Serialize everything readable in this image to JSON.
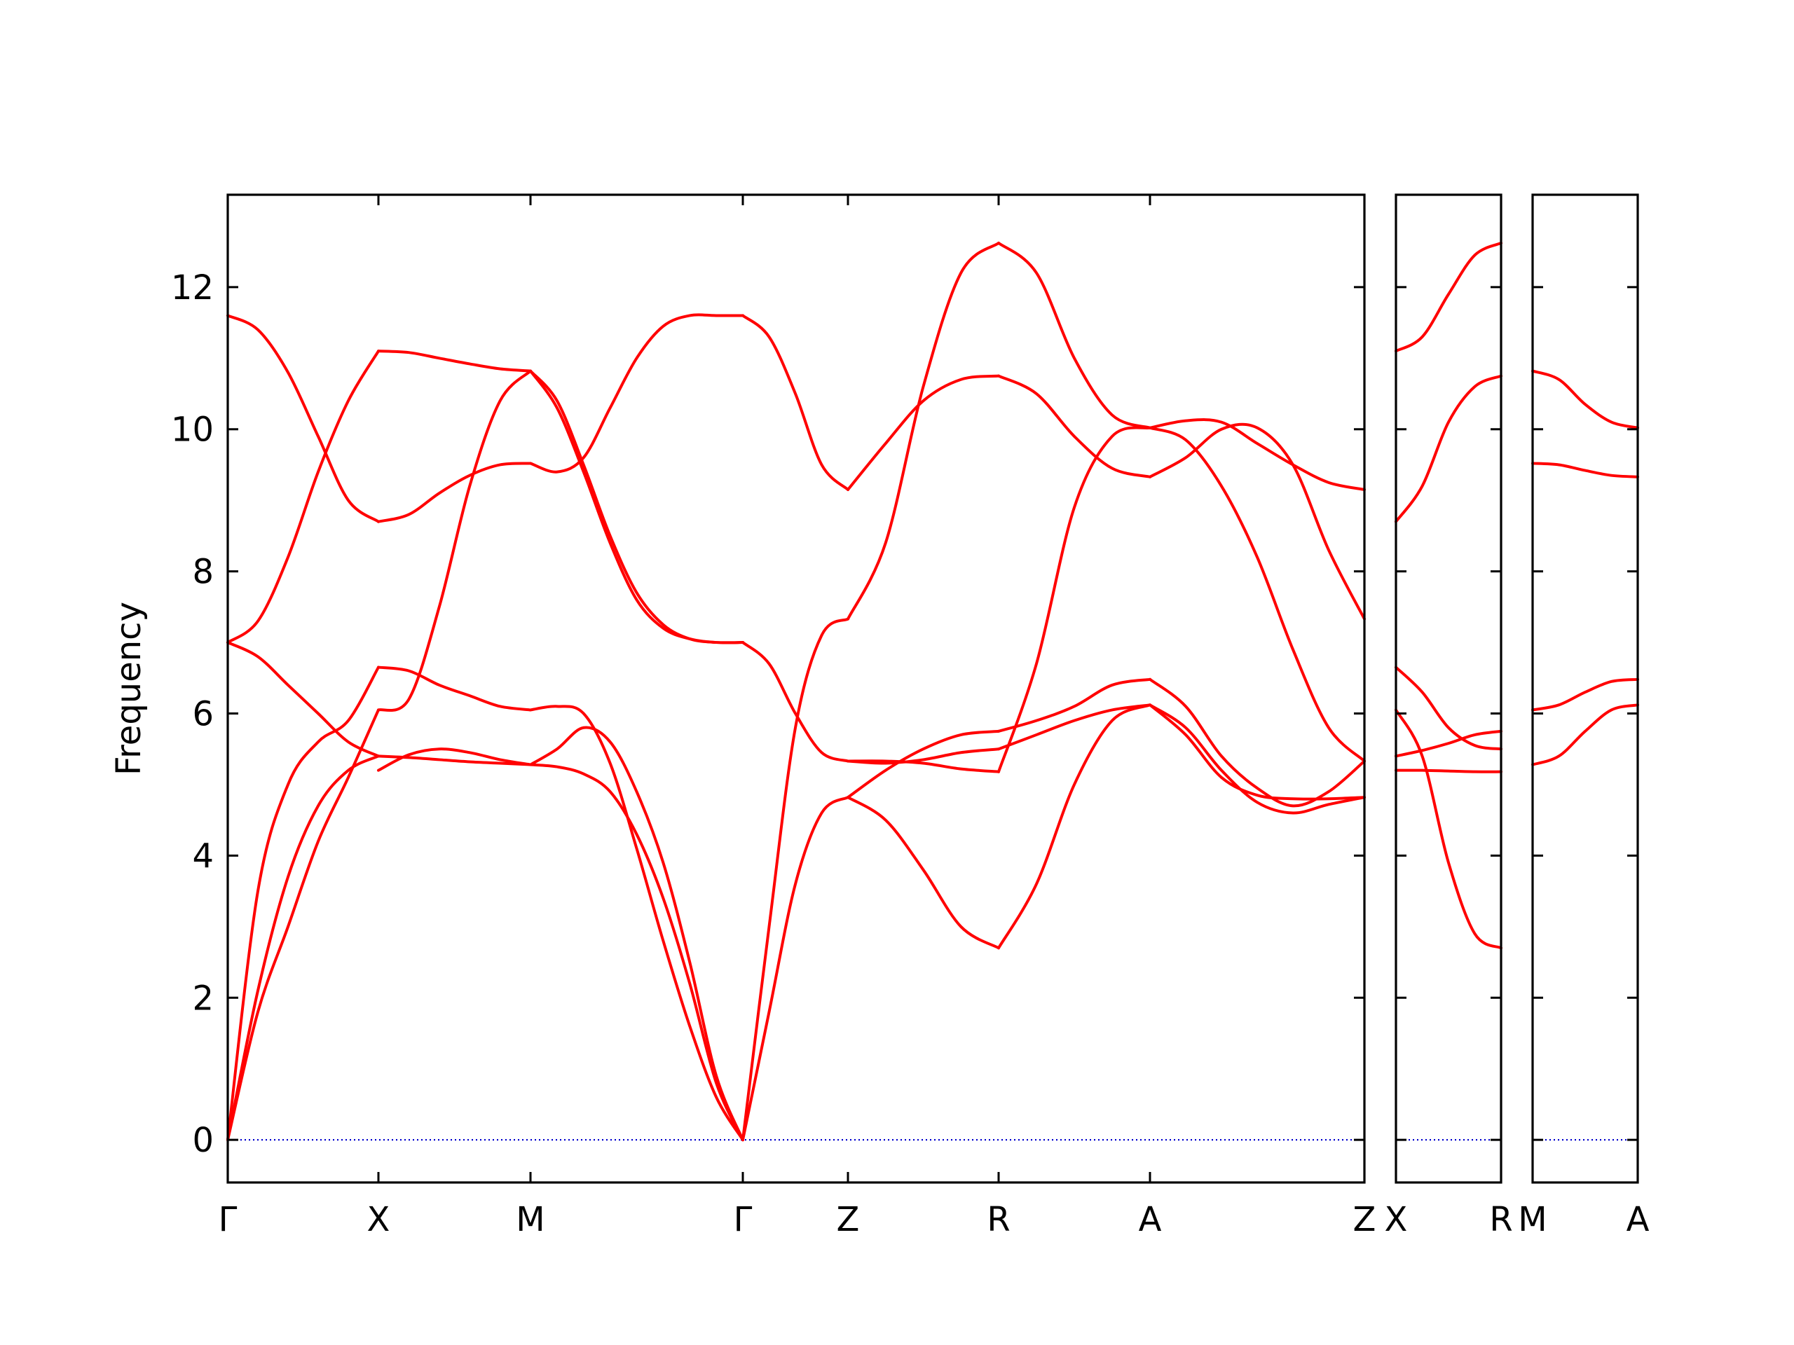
{
  "chart_data": {
    "type": "line",
    "ylabel": "Frequency",
    "ylim": [
      -0.6,
      13.3
    ],
    "y_ticks": [
      0,
      2,
      4,
      6,
      8,
      10,
      12
    ],
    "grid": false,
    "legend": "none",
    "line_color": "#ff0000",
    "zero_line_color": "#0000cc",
    "panels": [
      {
        "segments": [
          {
            "from": "Γ",
            "to": "X",
            "bands": [
              [
                0.0,
                2.1,
                3.7,
                4.7,
                5.2,
                5.4
              ],
              [
                0.0,
                1.8,
                3.0,
                4.2,
                5.1,
                6.05
              ],
              [
                0.0,
                3.5,
                5.0,
                5.6,
                5.9,
                6.65
              ],
              [
                7.0,
                6.8,
                6.4,
                6.0,
                5.6,
                5.4
              ],
              [
                7.0,
                7.3,
                8.2,
                9.4,
                10.4,
                11.1
              ],
              [
                11.6,
                11.4,
                10.8,
                9.9,
                9.0,
                8.7
              ]
            ]
          },
          {
            "from": "X",
            "to": "M",
            "bands": [
              [
                5.2,
                5.42,
                5.5,
                5.45,
                5.35,
                5.28
              ],
              [
                5.4,
                5.38,
                5.35,
                5.32,
                5.3,
                5.28
              ],
              [
                6.05,
                6.2,
                7.5,
                9.2,
                10.4,
                10.82
              ],
              [
                6.65,
                6.6,
                6.4,
                6.25,
                6.1,
                6.05
              ],
              [
                8.7,
                8.8,
                9.1,
                9.35,
                9.5,
                9.52
              ],
              [
                11.1,
                11.08,
                11.0,
                10.92,
                10.85,
                10.82
              ]
            ]
          },
          {
            "from": "M",
            "to": "Γ",
            "bands": [
              [
                5.28,
                5.5,
                5.8,
                5.6,
                4.9,
                3.9,
                2.5,
                0.9,
                0.0
              ],
              [
                5.28,
                5.25,
                5.15,
                4.9,
                4.3,
                3.4,
                2.2,
                0.8,
                0.0
              ],
              [
                6.05,
                6.1,
                6.0,
                5.3,
                4.1,
                2.8,
                1.6,
                0.6,
                0.0
              ],
              [
                10.82,
                10.4,
                9.5,
                8.5,
                7.7,
                7.25,
                7.05,
                7.0,
                7.0
              ],
              [
                10.82,
                10.3,
                9.4,
                8.4,
                7.6,
                7.2,
                7.05,
                7.0,
                7.0
              ],
              [
                9.52,
                9.4,
                9.6,
                10.3,
                11.0,
                11.45,
                11.6,
                11.6,
                11.6
              ]
            ]
          },
          {
            "from": "Γ",
            "to": "Z",
            "bands": [
              [
                0.0,
                1.8,
                3.6,
                4.6,
                4.82
              ],
              [
                0.0,
                3.0,
                5.8,
                7.1,
                7.33
              ],
              [
                7.0,
                6.7,
                6.0,
                5.45,
                5.33
              ],
              [
                11.6,
                11.3,
                10.5,
                9.5,
                9.15
              ]
            ]
          },
          {
            "from": "Z",
            "to": "R",
            "bands": [
              [
                4.82,
                4.5,
                3.8,
                3.0,
                2.7
              ],
              [
                4.82,
                5.2,
                5.5,
                5.7,
                5.75
              ],
              [
                5.33,
                5.33,
                5.3,
                5.22,
                5.18
              ],
              [
                5.33,
                5.3,
                5.35,
                5.45,
                5.5
              ],
              [
                7.33,
                8.4,
                10.6,
                12.2,
                12.62
              ],
              [
                9.15,
                9.8,
                10.4,
                10.7,
                10.75
              ]
            ]
          },
          {
            "from": "R",
            "to": "A",
            "bands": [
              [
                2.7,
                3.6,
                5.0,
                5.9,
                6.12
              ],
              [
                5.18,
                6.7,
                8.9,
                9.9,
                10.02
              ],
              [
                5.5,
                5.7,
                5.9,
                6.05,
                6.12
              ],
              [
                5.75,
                5.9,
                6.1,
                6.4,
                6.48
              ],
              [
                10.75,
                10.5,
                9.9,
                9.45,
                9.33
              ],
              [
                12.62,
                12.2,
                11.0,
                10.2,
                10.02
              ]
            ]
          },
          {
            "from": "A",
            "to": "Z",
            "bands": [
              [
                6.12,
                5.8,
                5.2,
                4.75,
                4.6,
                4.72,
                4.82
              ],
              [
                6.12,
                5.7,
                5.1,
                4.85,
                4.8,
                4.8,
                4.82
              ],
              [
                6.48,
                6.1,
                5.4,
                4.95,
                4.7,
                4.9,
                5.33
              ],
              [
                10.02,
                9.85,
                9.2,
                8.2,
                6.9,
                5.8,
                5.33
              ],
              [
                9.33,
                9.6,
                10.0,
                10.02,
                9.5,
                8.3,
                7.33
              ],
              [
                10.02,
                10.12,
                10.1,
                9.8,
                9.5,
                9.25,
                9.15
              ]
            ]
          }
        ]
      },
      {
        "segments": [
          {
            "from": "X",
            "to": "R",
            "bands": [
              [
                5.2,
                5.2,
                5.19,
                5.18,
                5.18
              ],
              [
                5.4,
                5.48,
                5.58,
                5.7,
                5.75
              ],
              [
                6.05,
                5.4,
                3.9,
                2.9,
                2.7
              ],
              [
                6.65,
                6.3,
                5.8,
                5.55,
                5.5
              ],
              [
                8.7,
                9.2,
                10.1,
                10.6,
                10.75
              ],
              [
                11.1,
                11.3,
                11.9,
                12.45,
                12.62
              ]
            ]
          }
        ]
      },
      {
        "segments": [
          {
            "from": "M",
            "to": "A",
            "bands": [
              [
                5.28,
                5.4,
                5.75,
                6.05,
                6.12
              ],
              [
                6.05,
                6.12,
                6.3,
                6.45,
                6.48
              ],
              [
                9.52,
                9.5,
                9.42,
                9.35,
                9.33
              ],
              [
                10.82,
                10.7,
                10.35,
                10.1,
                10.02
              ]
            ]
          }
        ]
      }
    ],
    "x_tick_labels": [
      "Γ",
      "X",
      "M",
      "Γ",
      "Z",
      "R",
      "A",
      "Z",
      "X",
      "R",
      "M",
      "A"
    ]
  }
}
